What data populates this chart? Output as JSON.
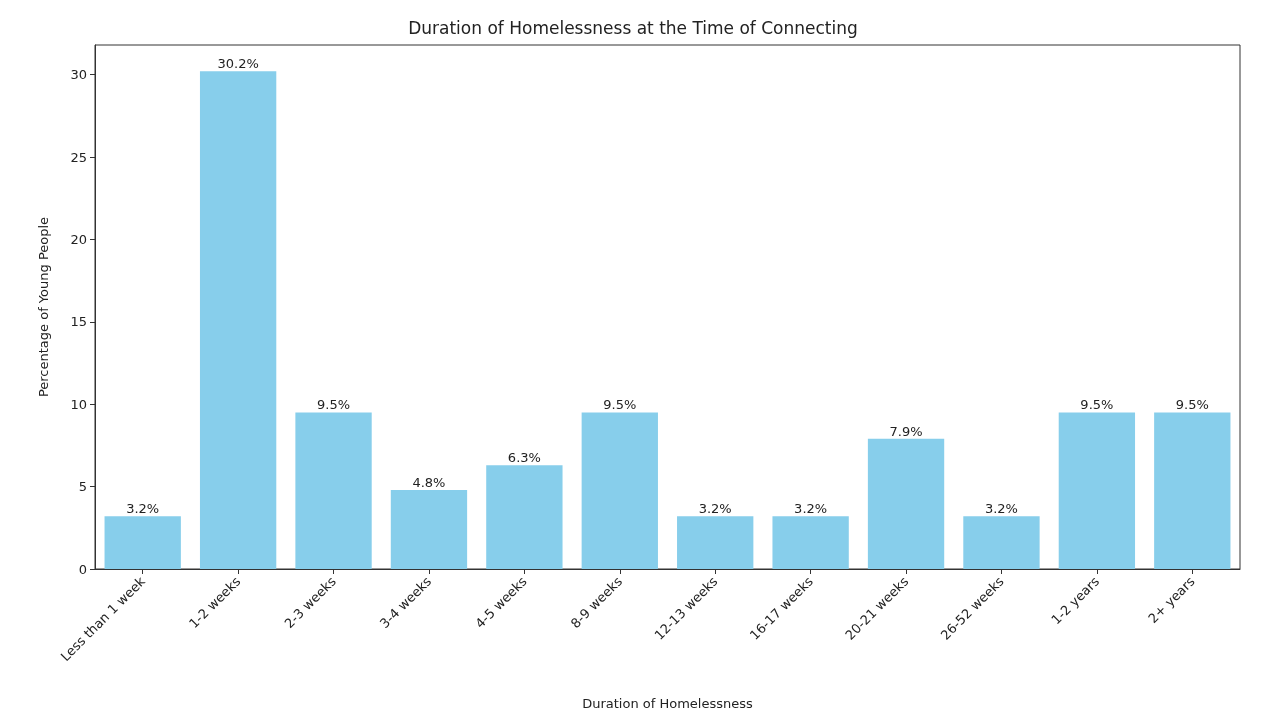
{
  "chart_data": {
    "type": "bar",
    "title": "Duration of Homelessness at the Time of Connecting",
    "xlabel": "Duration of Homelessness",
    "ylabel": "Percentage of Young People",
    "categories": [
      "Less than 1 week",
      "1-2 weeks",
      "2-3 weeks",
      "3-4 weeks",
      "4-5 weeks",
      "8-9 weeks",
      "12-13 weeks",
      "16-17 weeks",
      "20-21 weeks",
      "26-52 weeks",
      "1-2 years",
      "2+ years"
    ],
    "values": [
      3.2,
      30.2,
      9.5,
      4.8,
      6.3,
      9.5,
      3.2,
      3.2,
      7.9,
      3.2,
      9.5,
      9.5
    ],
    "value_labels": [
      "3.2%",
      "30.2%",
      "9.5%",
      "4.8%",
      "6.3%",
      "9.5%",
      "3.2%",
      "3.2%",
      "7.9%",
      "3.2%",
      "9.5%",
      "9.5%"
    ],
    "color": "#87ceeb",
    "ylim": [
      0,
      31.8
    ],
    "yticks": [
      0,
      5,
      10,
      15,
      20,
      25,
      30
    ],
    "grid": false
  }
}
